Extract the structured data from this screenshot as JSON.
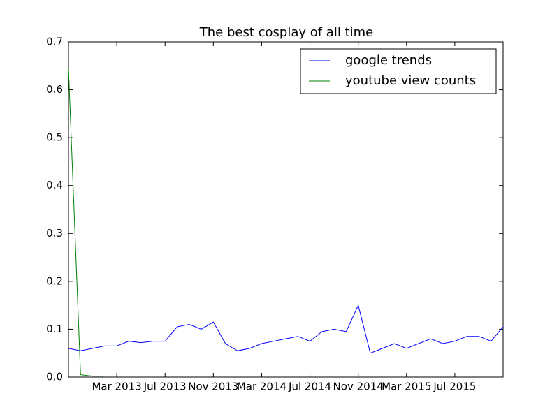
{
  "chart_data": {
    "type": "line",
    "title": "The best cosplay of all time",
    "x": [
      "2012-11",
      "2012-12",
      "2013-01",
      "2013-02",
      "2013-03",
      "2013-04",
      "2013-05",
      "2013-06",
      "2013-07",
      "2013-08",
      "2013-09",
      "2013-10",
      "2013-11",
      "2013-12",
      "2014-01",
      "2014-02",
      "2014-03",
      "2014-04",
      "2014-05",
      "2014-06",
      "2014-07",
      "2014-08",
      "2014-09",
      "2014-10",
      "2014-11",
      "2014-12",
      "2015-01",
      "2015-02",
      "2015-03",
      "2015-04",
      "2015-05",
      "2015-06",
      "2015-07",
      "2015-08",
      "2015-09",
      "2015-10",
      "2015-11"
    ],
    "series": [
      {
        "name": "google trends",
        "color": "#0000ff",
        "values": [
          0.06,
          0.055,
          0.06,
          0.065,
          0.065,
          0.075,
          0.072,
          0.075,
          0.075,
          0.105,
          0.11,
          0.1,
          0.115,
          0.07,
          0.055,
          0.06,
          0.07,
          0.075,
          0.08,
          0.085,
          0.075,
          0.095,
          0.1,
          0.095,
          0.15,
          0.05,
          0.06,
          0.07,
          0.06,
          0.07,
          0.08,
          0.07,
          0.075,
          0.085,
          0.085,
          0.075,
          0.105
        ]
      },
      {
        "name": "youtube view counts",
        "color": "#008000",
        "values": [
          0.645,
          0.005,
          0.002,
          0.002,
          null,
          null,
          null,
          null,
          null,
          null,
          null,
          null,
          null,
          null,
          null,
          null,
          null,
          null,
          null,
          null,
          null,
          null,
          null,
          null,
          null,
          null,
          null,
          null,
          null,
          null,
          null,
          null,
          null,
          null,
          null,
          null,
          null
        ]
      }
    ],
    "xlim": [
      "2012-11",
      "2015-11"
    ],
    "xticks": [
      {
        "value": "2013-03",
        "label": "Mar 2013"
      },
      {
        "value": "2013-07",
        "label": "Jul 2013"
      },
      {
        "value": "2013-11",
        "label": "Nov 2013"
      },
      {
        "value": "2014-03",
        "label": "Mar 2014"
      },
      {
        "value": "2014-07",
        "label": "Jul 2014"
      },
      {
        "value": "2014-11",
        "label": "Nov 2014"
      },
      {
        "value": "2015-03",
        "label": "Mar 2015"
      },
      {
        "value": "2015-07",
        "label": "Jul 2015"
      }
    ],
    "ylim": [
      0,
      0.7
    ],
    "yticks": [
      {
        "value": 0,
        "label": "0.0"
      },
      0.1,
      0.2,
      0.3,
      0.4,
      0.5,
      0.6,
      0.7
    ],
    "grid": false,
    "legend": "upper right"
  }
}
